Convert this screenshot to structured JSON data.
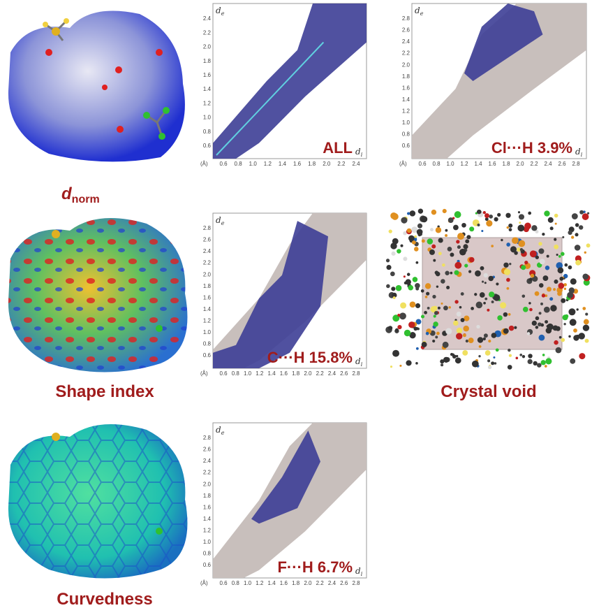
{
  "figure": {
    "surfaces": [
      {
        "label": "d",
        "label_sub": "norm"
      },
      {
        "label": "Shape index"
      },
      {
        "label": "Curvedness"
      }
    ],
    "plots": [
      {
        "label": "ALL",
        "y_axis": "d",
        "y_sub": "e",
        "x_axis": "d",
        "x_sub": "i",
        "unit": "(Å)",
        "yticks": [
          "0.6",
          "0.8",
          "1.0",
          "1.2",
          "1.4",
          "1.6",
          "1.8",
          "2.0",
          "2.2",
          "2.4"
        ],
        "xticks": [
          "0.6",
          "0.8",
          "1.0",
          "1.2",
          "1.4",
          "1.6",
          "1.8",
          "2.0",
          "2.2",
          "2.4"
        ]
      },
      {
        "label": "Cl···H 3.9%",
        "y_axis": "d",
        "y_sub": "e",
        "x_axis": "d",
        "x_sub": "i",
        "unit": "(Å)",
        "yticks": [
          "0.6",
          "0.8",
          "1.0",
          "1.2",
          "1.4",
          "1.6",
          "1.8",
          "2.0",
          "2.2",
          "2.4",
          "2.6",
          "2.8"
        ],
        "xticks": [
          "0.6",
          "0.8",
          "1.0",
          "1.2",
          "1.4",
          "1.6",
          "1.8",
          "2.0",
          "2.2",
          "2.4",
          "2.6",
          "2.8"
        ]
      },
      {
        "label": "C···H 15.8%",
        "y_axis": "d",
        "y_sub": "e",
        "x_axis": "d",
        "x_sub": "i",
        "unit": "(Å)",
        "yticks": [
          "0.6",
          "0.8",
          "1.0",
          "1.2",
          "1.4",
          "1.6",
          "1.8",
          "2.0",
          "2.2",
          "2.4",
          "2.6",
          "2.8"
        ],
        "xticks": [
          "0.6",
          "0.8",
          "1.0",
          "1.2",
          "1.4",
          "1.6",
          "1.8",
          "2.0",
          "2.2",
          "2.4",
          "2.6",
          "2.8"
        ]
      },
      {
        "label": "F···H 6.7%",
        "y_axis": "d",
        "y_sub": "e",
        "x_axis": "d",
        "x_sub": "i",
        "unit": "(Å)",
        "yticks": [
          "0.6",
          "0.8",
          "1.0",
          "1.2",
          "1.4",
          "1.6",
          "1.8",
          "2.0",
          "2.2",
          "2.4",
          "2.6",
          "2.8"
        ],
        "xticks": [
          "0.6",
          "0.8",
          "1.0",
          "1.2",
          "1.4",
          "1.6",
          "1.8",
          "2.0",
          "2.2",
          "2.4",
          "2.6",
          "2.8"
        ]
      }
    ],
    "void": {
      "label": "Crystal void"
    }
  }
}
